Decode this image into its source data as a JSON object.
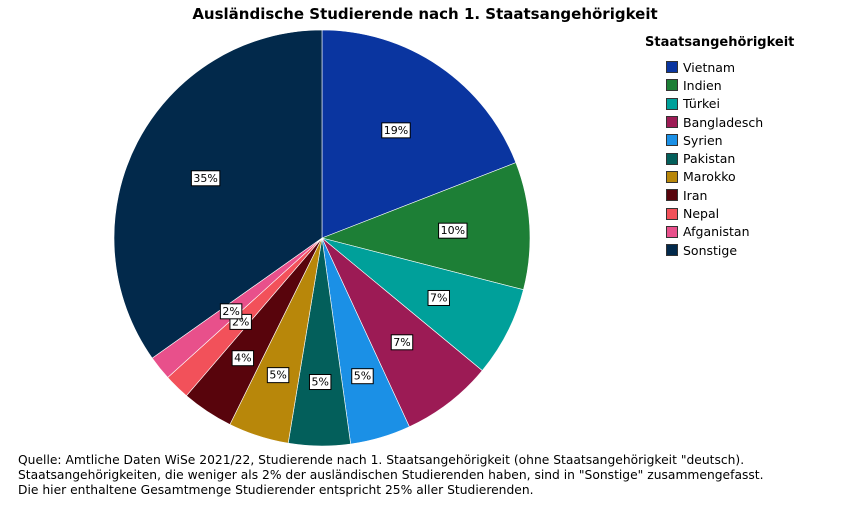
{
  "chart_data": {
    "type": "pie",
    "title": "Ausländische Studierende nach 1. Staatsangehörigkeit",
    "legend_title": "Staatsangehörigkeit",
    "legend_position": "right",
    "start": "top, clockwise",
    "slices": [
      {
        "name": "Vietnam",
        "value": 19.1,
        "label": "19%",
        "color": "#0a35a0"
      },
      {
        "name": "Indien",
        "value": 9.9,
        "label": "10%",
        "color": "#1d7f36"
      },
      {
        "name": "Türkei",
        "value": 7.0,
        "label": "7%",
        "color": "#00a09a"
      },
      {
        "name": "Bangladesch",
        "value": 7.1,
        "label": "7%",
        "color": "#9c1b55"
      },
      {
        "name": "Syrien",
        "value": 4.7,
        "label": "5%",
        "color": "#1b90e6"
      },
      {
        "name": "Pakistan",
        "value": 4.8,
        "label": "5%",
        "color": "#035f5b"
      },
      {
        "name": "Marokko",
        "value": 4.7,
        "label": "5%",
        "color": "#b8870a"
      },
      {
        "name": "Iran",
        "value": 4.0,
        "label": "4%",
        "color": "#58040c"
      },
      {
        "name": "Nepal",
        "value": 2.0,
        "label": "2%",
        "color": "#f2515a"
      },
      {
        "name": "Afganistan",
        "value": 1.9,
        "label": "2%",
        "color": "#e8508b"
      },
      {
        "name": "Sonstige",
        "value": 34.8,
        "label": "35%",
        "color": "#02294b"
      }
    ]
  },
  "notes": [
    "Quelle: Amtliche Daten WiSe 2021/22, Studierende nach 1. Staatsangehörigkeit (ohne Staatsangehörigkeit \"deutsch).",
    "Staatsangehörigkeiten, die weniger als 2% der ausländischen Studierenden haben, sind in \"Sonstige\" zusammengefasst.",
    "Die hier enthaltene Gesamtmenge Studierender entspricht 25% aller Studierenden."
  ]
}
